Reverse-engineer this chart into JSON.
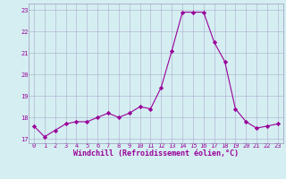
{
  "x": [
    0,
    1,
    2,
    3,
    4,
    5,
    6,
    7,
    8,
    9,
    10,
    11,
    12,
    13,
    14,
    15,
    16,
    17,
    18,
    19,
    20,
    21,
    22,
    23
  ],
  "y": [
    17.6,
    17.1,
    17.4,
    17.7,
    17.8,
    17.8,
    18.0,
    18.2,
    18.0,
    18.2,
    18.5,
    18.4,
    19.4,
    21.1,
    22.9,
    22.9,
    22.9,
    21.5,
    20.6,
    18.4,
    17.8,
    17.5,
    17.6,
    17.7
  ],
  "line_color": "#990099",
  "marker": "D",
  "marker_size": 2.2,
  "bg_color": "#d5eef2",
  "grid_color": "#aaaacc",
  "xlabel": "Windchill (Refroidissement éolien,°C)",
  "ylabel_ticks": [
    17,
    18,
    19,
    20,
    21,
    22,
    23
  ],
  "xlabel_ticks": [
    0,
    1,
    2,
    3,
    4,
    5,
    6,
    7,
    8,
    9,
    10,
    11,
    12,
    13,
    14,
    15,
    16,
    17,
    18,
    19,
    20,
    21,
    22,
    23
  ],
  "ylim": [
    16.8,
    23.3
  ],
  "xlim": [
    -0.5,
    23.5
  ],
  "tick_fontsize": 5.0,
  "xlabel_fontsize": 6.0,
  "label_color": "#990099",
  "spine_color": "#9999bb",
  "linewidth": 0.8
}
